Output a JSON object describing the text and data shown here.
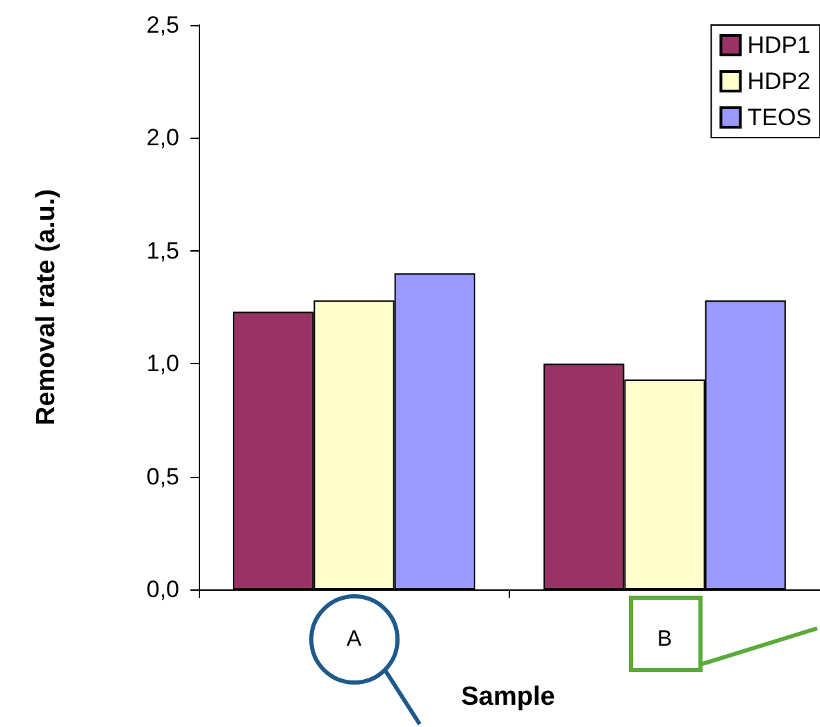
{
  "chart_data": {
    "type": "bar",
    "xlabel": "Sample",
    "ylabel": "Removal rate (a.u.)",
    "categories": [
      "A",
      "B"
    ],
    "series": [
      {
        "name": "HDP1",
        "color": "#993366",
        "values": [
          1.23,
          1.0
        ]
      },
      {
        "name": "HDP2",
        "color": "#ffffcc",
        "values": [
          1.28,
          0.93
        ]
      },
      {
        "name": "TEOS",
        "color": "#9999ff",
        "values": [
          1.4,
          1.28
        ]
      }
    ],
    "ylim": [
      0,
      2.5
    ],
    "yticks": [
      {
        "value": 0,
        "label": "0,0"
      },
      {
        "value": 0.5,
        "label": "0,5"
      },
      {
        "value": 1,
        "label": "1,0"
      },
      {
        "value": 1.5,
        "label": "1,5"
      },
      {
        "value": 2,
        "label": "2,0"
      },
      {
        "value": 2.5,
        "label": "2,5"
      }
    ],
    "grid": false,
    "legend": "top right"
  }
}
